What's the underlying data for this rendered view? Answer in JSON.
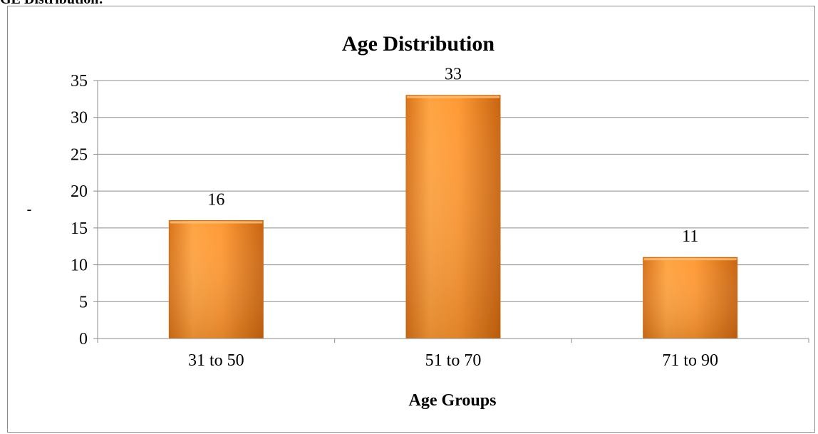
{
  "heading": "GE Distribution:",
  "colors": {
    "bar_light": "#ffa64a",
    "bar_main": "#f58a22",
    "bar_dark": "#cf6a12",
    "grid": "#8c8c8c",
    "axis": "#8c8c8c"
  },
  "chart_data": {
    "type": "bar",
    "title": "Age Distribution",
    "xlabel": "Age Groups",
    "ylabel": "",
    "categories": [
      "31 to 50",
      "51 to 70",
      "71 to 90"
    ],
    "values": [
      16,
      33,
      11
    ],
    "data_labels": [
      "16",
      "33",
      "11"
    ],
    "ylim": [
      0,
      35
    ],
    "yticks": [
      0,
      5,
      10,
      15,
      20,
      25,
      30,
      35
    ],
    "grid": true,
    "legend": "none"
  }
}
